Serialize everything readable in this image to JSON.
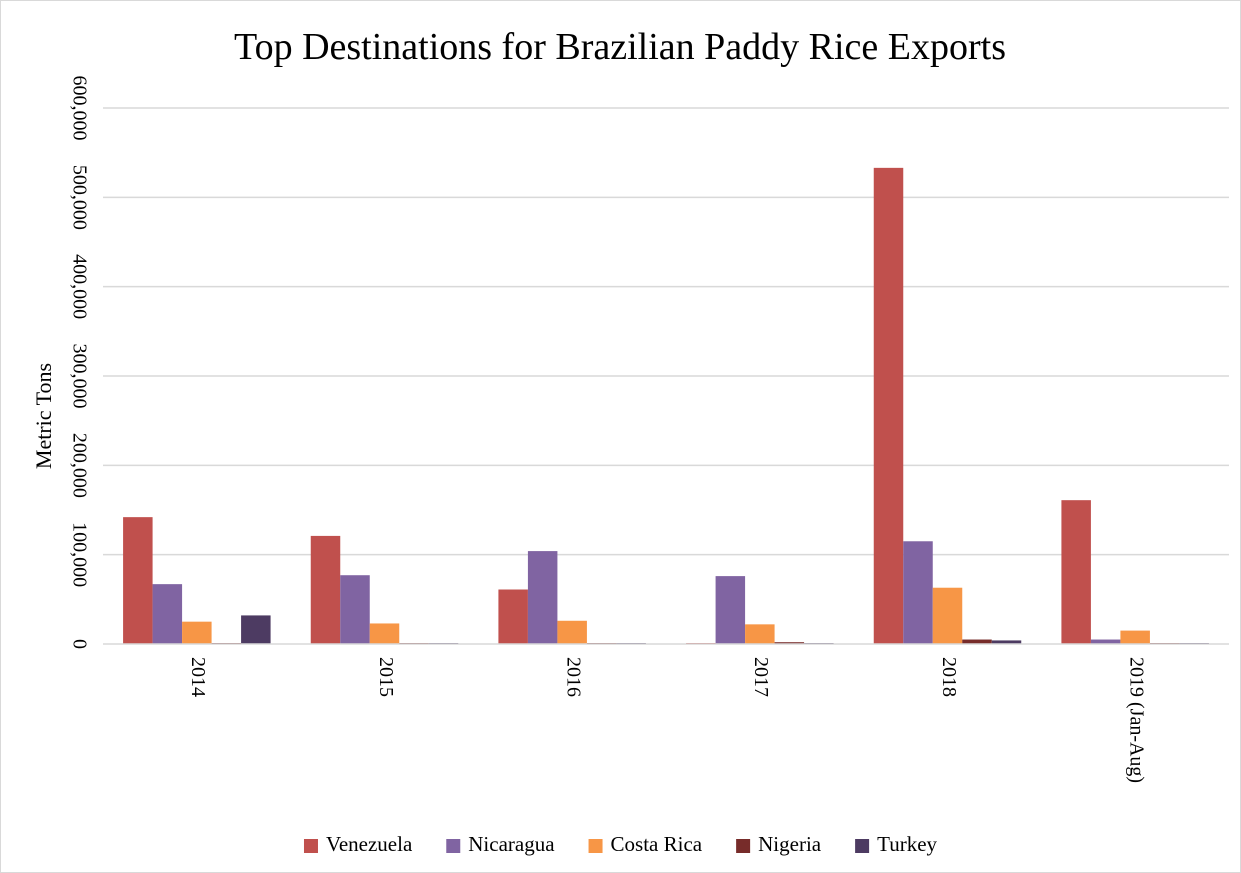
{
  "chart_data": {
    "type": "bar",
    "title": "Top Destinations for Brazilian Paddy Rice Exports",
    "xlabel": "",
    "ylabel": "Metric Tons",
    "categories": [
      "2014",
      "2015",
      "2016",
      "2017",
      "2018",
      "2019 (Jan-Aug)"
    ],
    "y_ticks": [
      "0",
      "100,000",
      "200,000",
      "300,000",
      "400,000",
      "500,000",
      "600,000"
    ],
    "ylim": [
      0,
      600000
    ],
    "grid": true,
    "legend_position": "bottom",
    "series": [
      {
        "name": "Venezuela",
        "color": "#c0504d",
        "values": [
          142000,
          121000,
          61000,
          500,
          533000,
          161000
        ]
      },
      {
        "name": "Nicaragua",
        "color": "#8064a2",
        "values": [
          67000,
          77000,
          104000,
          76000,
          115000,
          5000
        ]
      },
      {
        "name": "Costa Rica",
        "color": "#f79646",
        "values": [
          25000,
          23000,
          26000,
          22000,
          63000,
          15000
        ]
      },
      {
        "name": "Nigeria",
        "color": "#772c2a",
        "values": [
          500,
          500,
          500,
          2000,
          5000,
          500
        ]
      },
      {
        "name": "Turkey",
        "color": "#4d3b62",
        "values": [
          32000,
          500,
          500,
          500,
          4000,
          500
        ]
      }
    ]
  }
}
